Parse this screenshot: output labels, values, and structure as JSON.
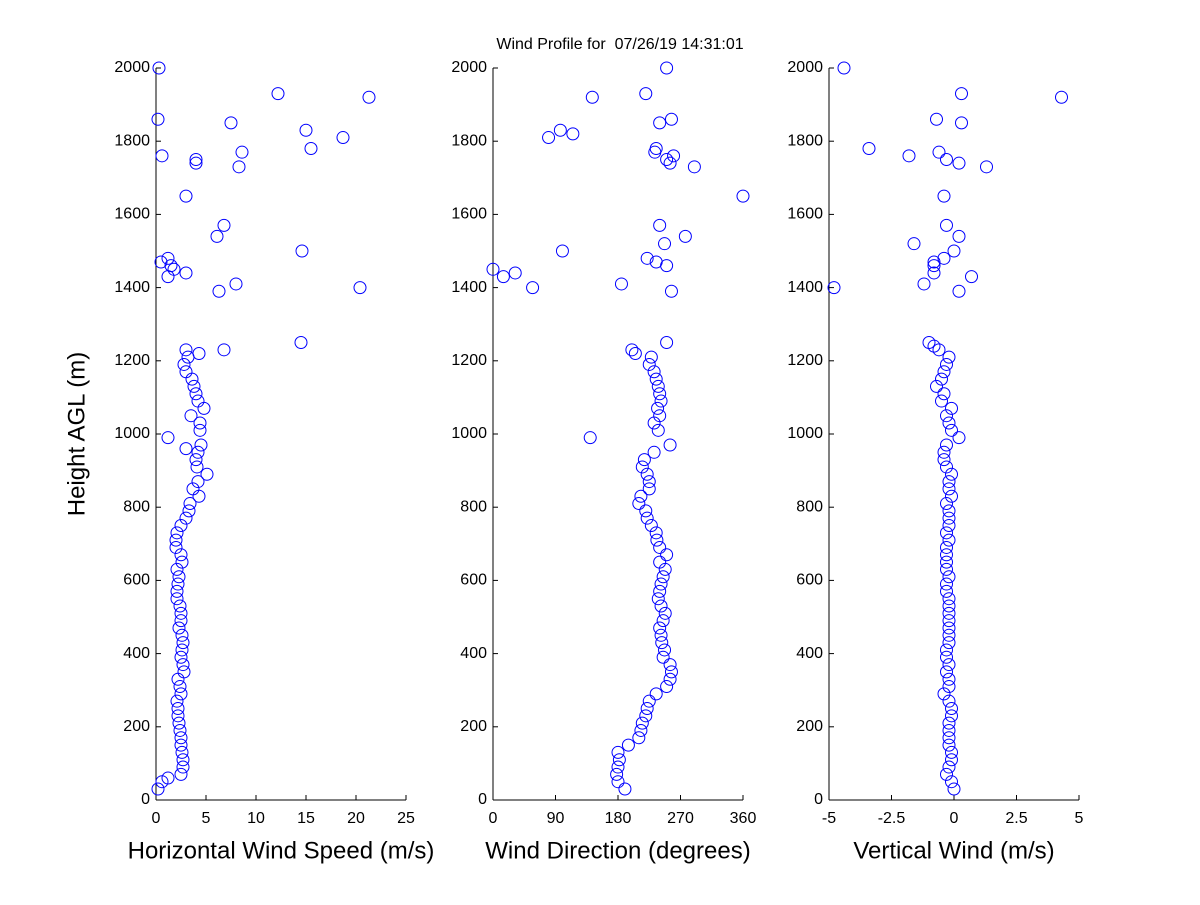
{
  "chart_data": [
    {
      "type": "scatter",
      "title": "Wind Profile for  07/26/19 14:31:01",
      "xlabel": "Horizontal Wind Speed (m/s)",
      "ylabel": "Height AGL (m)",
      "color": "#0000ff",
      "marker": "circle",
      "xlim": [
        0,
        25
      ],
      "xticks": [
        0,
        5,
        10,
        15,
        20,
        25
      ],
      "ylim": [
        0,
        2000
      ],
      "yticks": [
        0,
        200,
        400,
        600,
        800,
        1000,
        1200,
        1400,
        1600,
        1800,
        2000
      ],
      "x": [
        0.2,
        0.6,
        1.2,
        2.5,
        2.7,
        2.7,
        2.6,
        2.5,
        2.5,
        2.4,
        2.3,
        2.2,
        2.2,
        2.1,
        2.5,
        2.4,
        2.2,
        2.8,
        2.7,
        2.5,
        2.6,
        2.7,
        2.6,
        2.3,
        2.5,
        2.5,
        2.4,
        2.1,
        2.1,
        2.2,
        2.3,
        2.1,
        2.6,
        2.5,
        2.0,
        2.0,
        2.1,
        2.5,
        3.0,
        3.3,
        3.4,
        4.3,
        3.7,
        4.2,
        5.1,
        4.1,
        4.0,
        4.2,
        4.5,
        4.4,
        4.4,
        3.5,
        4.8,
        4.2,
        4.0,
        3.8,
        3.6,
        3.0,
        2.8,
        3.2,
        3.0,
        3.0,
        1.2,
        4.3,
        6.8,
        14.5,
        0.3,
        12.2,
        21.3,
        0.2,
        7.5,
        15,
        18.7,
        15.5,
        8.6,
        0.6,
        4,
        4,
        8.3,
        3,
        6.8,
        6.1,
        14.6,
        1.2,
        0.5,
        1.5,
        1.8,
        3,
        1.2,
        8,
        20.4,
        6.3
      ],
      "y": [
        30,
        50,
        60,
        70,
        90,
        110,
        130,
        150,
        170,
        190,
        210,
        230,
        250,
        270,
        290,
        310,
        330,
        350,
        370,
        390,
        410,
        430,
        450,
        470,
        490,
        510,
        530,
        550,
        570,
        590,
        610,
        630,
        650,
        670,
        690,
        710,
        730,
        750,
        770,
        790,
        810,
        830,
        850,
        870,
        890,
        910,
        930,
        950,
        970,
        1010,
        1030,
        1050,
        1070,
        1090,
        1110,
        1130,
        1150,
        1170,
        1190,
        1210,
        1230,
        960,
        990,
        1220,
        1230,
        1250,
        2000,
        1930,
        1920,
        1860,
        1850,
        1830,
        1810,
        1780,
        1770,
        1760,
        1750,
        1740,
        1730,
        1650,
        1570,
        1540,
        1500,
        1480,
        1470,
        1460,
        1450,
        1440,
        1430,
        1410,
        1400,
        1390
      ]
    },
    {
      "type": "scatter",
      "xlabel": "Wind Direction (degrees)",
      "color": "#0000ff",
      "marker": "circle",
      "xlim": [
        0,
        360
      ],
      "xticks": [
        0,
        90,
        180,
        270,
        360
      ],
      "ylim": [
        0,
        2000
      ],
      "yticks": [
        0,
        200,
        400,
        600,
        800,
        1000,
        1200,
        1400,
        1600,
        1800,
        2000
      ],
      "x": [
        190,
        180,
        178,
        180,
        182,
        180,
        195,
        210,
        213,
        215,
        220,
        222,
        225,
        235,
        250,
        255,
        257,
        255,
        245,
        247,
        243,
        242,
        240,
        245,
        248,
        242,
        238,
        240,
        242,
        245,
        248,
        240,
        250,
        240,
        236,
        235,
        228,
        222,
        220,
        210,
        213,
        225,
        225,
        222,
        215,
        218,
        232,
        255,
        238,
        232,
        240,
        237,
        242,
        240,
        238,
        235,
        232,
        225,
        228,
        200,
        140,
        205,
        250,
        250,
        220,
        143,
        257,
        240,
        97,
        115,
        80,
        235,
        233,
        260,
        250,
        255,
        290,
        360,
        240,
        277,
        247,
        100,
        222,
        235,
        250,
        0,
        32,
        15,
        185,
        57,
        257
      ],
      "y": [
        30,
        50,
        70,
        90,
        110,
        130,
        150,
        170,
        190,
        210,
        230,
        250,
        270,
        290,
        310,
        330,
        350,
        370,
        390,
        410,
        430,
        450,
        470,
        490,
        510,
        530,
        550,
        570,
        590,
        610,
        630,
        650,
        670,
        690,
        710,
        730,
        750,
        770,
        790,
        810,
        830,
        850,
        870,
        890,
        910,
        930,
        950,
        970,
        1010,
        1030,
        1050,
        1070,
        1090,
        1110,
        1130,
        1150,
        1170,
        1190,
        1210,
        1230,
        990,
        1220,
        1250,
        2000,
        1930,
        1920,
        1860,
        1850,
        1830,
        1820,
        1810,
        1780,
        1770,
        1760,
        1750,
        1740,
        1730,
        1650,
        1570,
        1540,
        1520,
        1500,
        1480,
        1470,
        1460,
        1450,
        1440,
        1430,
        1410,
        1400,
        1390
      ]
    },
    {
      "type": "scatter",
      "xlabel": "Vertical Wind (m/s)",
      "color": "#0000ff",
      "marker": "circle",
      "xlim": [
        -5,
        5
      ],
      "xticks": [
        -5,
        -2.5,
        0,
        2.5,
        5
      ],
      "ylim": [
        0,
        2000
      ],
      "yticks": [
        0,
        200,
        400,
        600,
        800,
        1000,
        1200,
        1400,
        1600,
        1800,
        2000
      ],
      "x": [
        0,
        -0.1,
        -0.3,
        -0.2,
        -0.1,
        -0.1,
        -0.2,
        -0.2,
        -0.2,
        -0.2,
        -0.1,
        -0.1,
        -0.2,
        -0.4,
        -0.2,
        -0.2,
        -0.3,
        -0.2,
        -0.3,
        -0.3,
        -0.2,
        -0.2,
        -0.2,
        -0.2,
        -0.2,
        -0.2,
        -0.2,
        -0.3,
        -0.3,
        -0.2,
        -0.3,
        -0.3,
        -0.3,
        -0.3,
        -0.2,
        -0.3,
        -0.2,
        -0.2,
        -0.2,
        -0.3,
        -0.1,
        -0.2,
        -0.2,
        -0.1,
        -0.3,
        -0.4,
        -0.4,
        -0.3,
        -0.1,
        -0.2,
        -0.3,
        -0.1,
        -0.5,
        -0.4,
        -0.7,
        -0.5,
        -0.4,
        -0.3,
        -0.2,
        -0.6,
        0.2,
        -0.8,
        -1.0,
        -4.4,
        0.3,
        4.3,
        -0.7,
        0.3,
        -3.4,
        -0.6,
        -1.8,
        -0.3,
        0.2,
        1.3,
        -0.4,
        -0.3,
        0.2,
        -1.6,
        0,
        -0.4,
        -0.8,
        -0.8,
        -0.8,
        0.7,
        -1.2,
        -4.8,
        0.2
      ],
      "y": [
        30,
        50,
        70,
        90,
        110,
        130,
        150,
        170,
        190,
        210,
        230,
        250,
        270,
        290,
        310,
        330,
        350,
        370,
        390,
        410,
        430,
        450,
        470,
        490,
        510,
        530,
        550,
        570,
        590,
        610,
        630,
        650,
        670,
        690,
        710,
        730,
        750,
        770,
        790,
        810,
        830,
        850,
        870,
        890,
        910,
        930,
        950,
        970,
        1010,
        1030,
        1050,
        1070,
        1090,
        1110,
        1130,
        1150,
        1170,
        1190,
        1210,
        1230,
        990,
        1240,
        1250,
        2000,
        1930,
        1920,
        1860,
        1850,
        1780,
        1770,
        1760,
        1750,
        1740,
        1730,
        1650,
        1570,
        1540,
        1520,
        1500,
        1480,
        1470,
        1460,
        1440,
        1430,
        1410,
        1400,
        1390
      ]
    }
  ]
}
